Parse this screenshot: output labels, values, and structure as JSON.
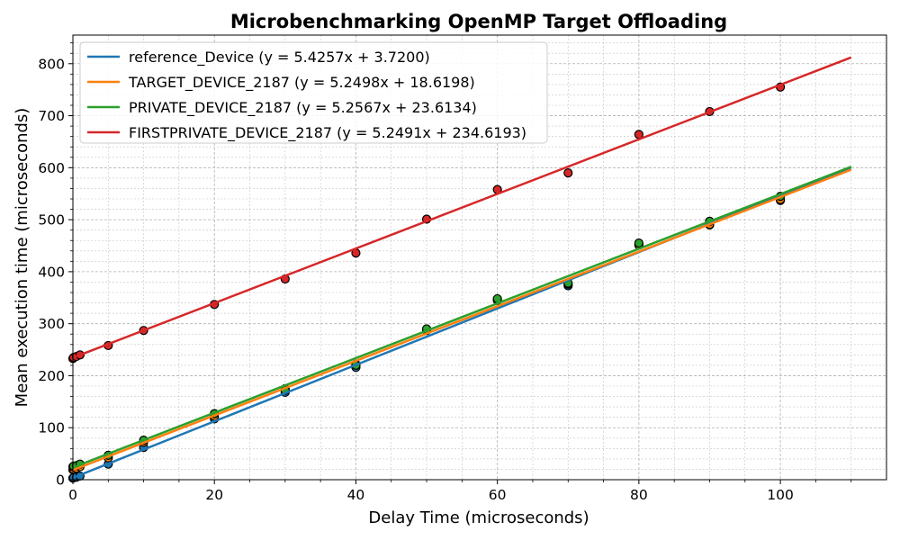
{
  "chart_data": {
    "type": "scatter",
    "title": "Microbenchmarking OpenMP Target Offloading",
    "xlabel": "Delay Time (microseconds)",
    "ylabel": "Mean execution time (microseconds)",
    "xlim": [
      0,
      115
    ],
    "ylim": [
      0,
      855
    ],
    "xticks": [
      0,
      20,
      40,
      60,
      80,
      100
    ],
    "yticks": [
      0,
      100,
      200,
      300,
      400,
      500,
      600,
      700,
      800
    ],
    "grid": true,
    "legend_position": "top-left",
    "fit_x_range": [
      0,
      110
    ],
    "series": [
      {
        "name": "reference_Device (y = 5.4257x + 3.7200)",
        "color": "#1f77b4",
        "slope": 5.4257,
        "intercept": 3.72,
        "x": [
          0,
          0.1,
          0.5,
          1,
          5,
          10,
          20,
          30,
          40,
          50,
          60,
          70,
          80,
          90,
          100
        ],
        "y": [
          3,
          4,
          5,
          7,
          30,
          62,
          117,
          168,
          216,
          288,
          345,
          373,
          452,
          490,
          537
        ]
      },
      {
        "name": "TARGET_DEVICE_2187 (y = 5.2498x + 18.6198)",
        "color": "#ff7f0e",
        "slope": 5.2498,
        "intercept": 18.6198,
        "x": [
          0,
          0.1,
          0.5,
          1,
          5,
          10,
          20,
          30,
          40,
          50,
          60,
          70,
          80,
          90,
          100
        ],
        "y": [
          19,
          20,
          22,
          25,
          42,
          72,
          122,
          175,
          222,
          287,
          345,
          376,
          451,
          491,
          539
        ]
      },
      {
        "name": "PRIVATE_DEVICE_2187 (y = 5.2567x + 23.6134)",
        "color": "#2ca02c",
        "slope": 5.2567,
        "intercept": 23.6134,
        "x": [
          0,
          0.1,
          0.5,
          1,
          5,
          10,
          20,
          30,
          40,
          50,
          60,
          70,
          80,
          90,
          100
        ],
        "y": [
          25,
          26,
          27,
          30,
          47,
          76,
          127,
          172,
          220,
          290,
          348,
          378,
          455,
          497,
          545
        ]
      },
      {
        "name": "FIRSTPRIVATE_DEVICE_2187 (y = 5.2491x + 234.6193)",
        "color": "#d62728",
        "slope": 5.2491,
        "intercept": 234.6193,
        "x": [
          0,
          0.1,
          0.5,
          1,
          5,
          10,
          20,
          30,
          40,
          50,
          60,
          70,
          80,
          90,
          100
        ],
        "y": [
          233,
          235,
          237,
          240,
          258,
          287,
          337,
          386,
          436,
          501,
          558,
          590,
          664,
          708,
          755
        ]
      }
    ]
  }
}
